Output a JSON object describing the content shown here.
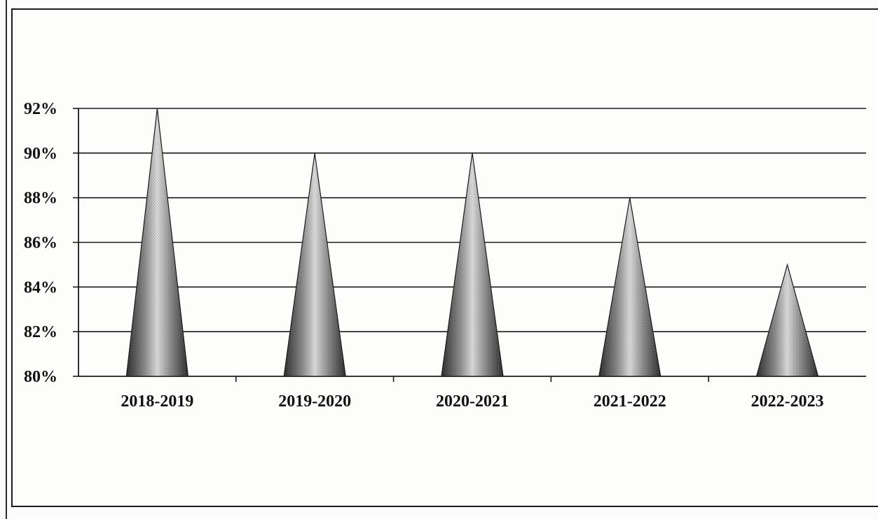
{
  "chart_data": {
    "type": "bar",
    "mark_shape": "cone",
    "categories": [
      "2018-2019",
      "2019-2020",
      "2020-2021",
      "2021-2022",
      "2022-2023"
    ],
    "values": [
      92,
      90,
      90,
      88,
      85
    ],
    "value_unit": "%",
    "ylim": [
      80,
      92
    ],
    "y_ticks": [
      "80%",
      "82%",
      "84%",
      "86%",
      "88%",
      "90%",
      "92%"
    ],
    "y_tick_values": [
      80,
      82,
      84,
      86,
      88,
      90,
      92
    ],
    "title": "",
    "xlabel": "",
    "ylabel": "",
    "grid": true,
    "legend": "none",
    "colors": {
      "cone_dark": "#2e2e2e",
      "cone_mid": "#8a8a8a",
      "cone_light": "#d9d9d9",
      "grid": "#1a1a1a",
      "text": "#111111"
    }
  }
}
